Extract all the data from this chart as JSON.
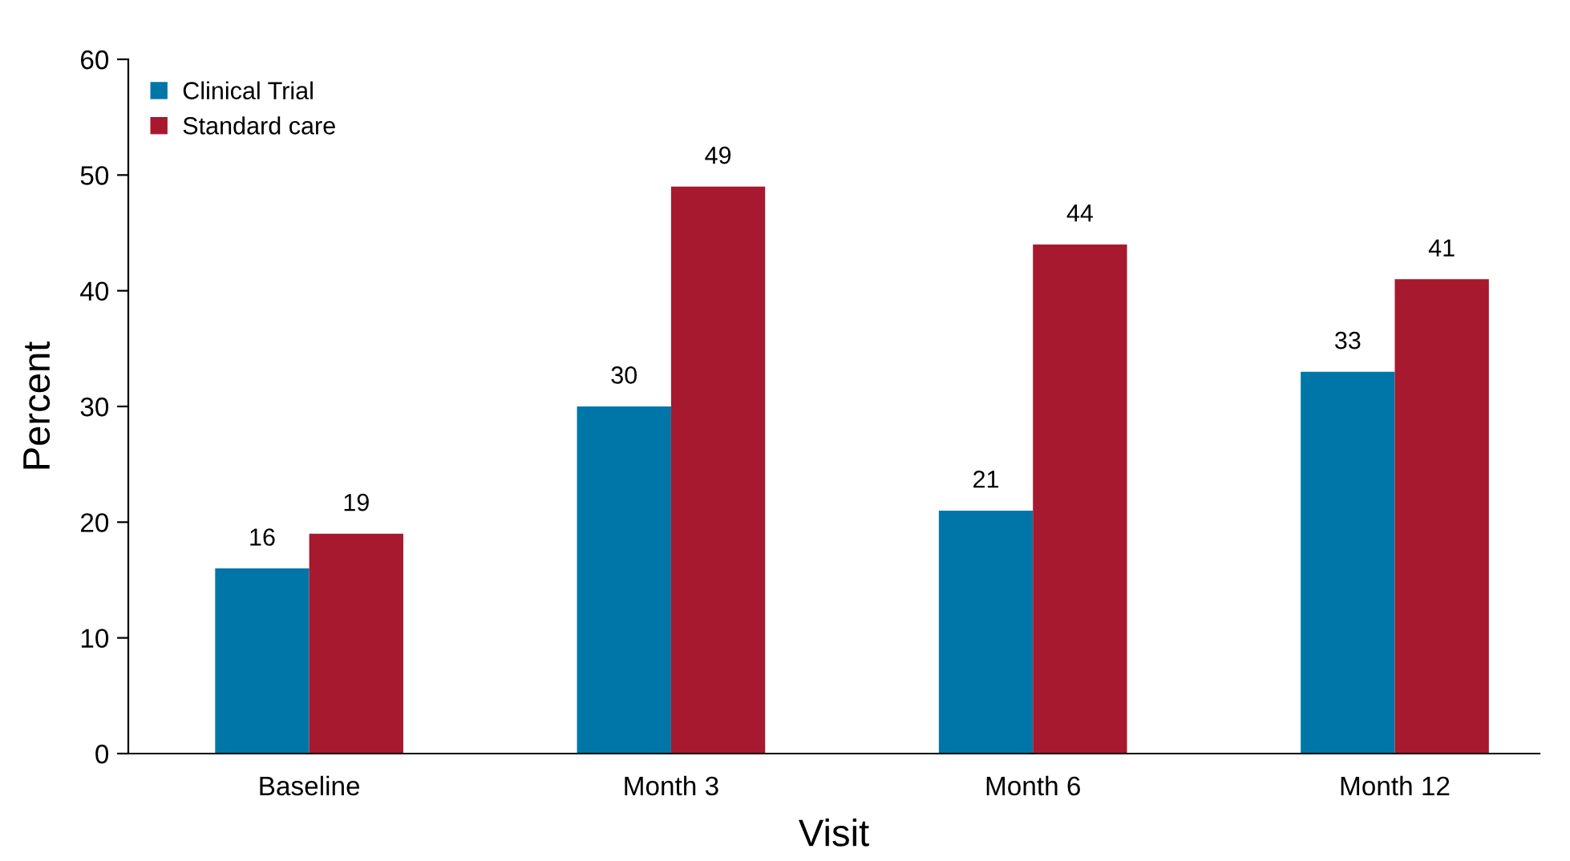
{
  "chart_data": {
    "type": "bar",
    "xlabel": "Visit",
    "ylabel": "Percent",
    "categories": [
      "Baseline",
      "Month 3",
      "Month 6",
      "Month 12"
    ],
    "series": [
      {
        "name": "Clinical Trial",
        "color": "#0076a8",
        "values": [
          16,
          30,
          21,
          33
        ]
      },
      {
        "name": "Standard care",
        "color": "#a6192e",
        "values": [
          19,
          49,
          44,
          41
        ]
      }
    ],
    "ylim": [
      0,
      60
    ],
    "yticks": [
      0,
      10,
      20,
      30,
      40,
      50,
      60
    ],
    "grid": false,
    "legend": "top left",
    "data_labels": true
  }
}
